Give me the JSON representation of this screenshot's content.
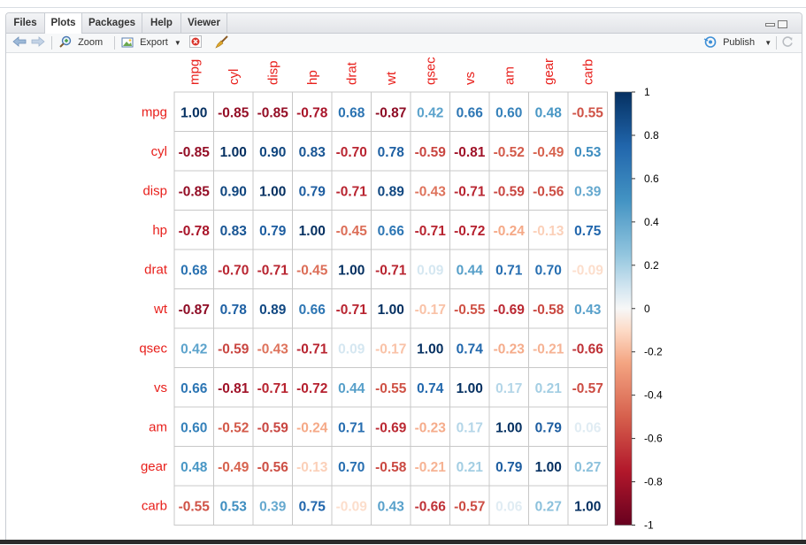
{
  "tabs": [
    {
      "label": "Files",
      "active": false
    },
    {
      "label": "Plots",
      "active": true
    },
    {
      "label": "Packages",
      "active": false
    },
    {
      "label": "Help",
      "active": false
    },
    {
      "label": "Viewer",
      "active": false
    }
  ],
  "toolbar": {
    "zoom_label": "Zoom",
    "export_label": "Export",
    "publish_label": "Publish"
  },
  "colors": {
    "label_red": "#e8201c",
    "strong_neg": "#67001f",
    "neg": "#b2182b",
    "mild_neg": "#d6604d",
    "pos": "#2166ac",
    "strong_pos": "#053061",
    "light_pos": "#92c5de"
  },
  "chart_data": {
    "type": "heatmap",
    "title": "",
    "variables": [
      "mpg",
      "cyl",
      "disp",
      "hp",
      "drat",
      "wt",
      "qsec",
      "vs",
      "am",
      "gear",
      "carb"
    ],
    "matrix": [
      [
        1.0,
        -0.85,
        -0.85,
        -0.78,
        0.68,
        -0.87,
        0.42,
        0.66,
        0.6,
        0.48,
        -0.55
      ],
      [
        -0.85,
        1.0,
        0.9,
        0.83,
        -0.7,
        0.78,
        -0.59,
        -0.81,
        -0.52,
        -0.49,
        0.53
      ],
      [
        -0.85,
        0.9,
        1.0,
        0.79,
        -0.71,
        0.89,
        -0.43,
        -0.71,
        -0.59,
        -0.56,
        0.39
      ],
      [
        -0.78,
        0.83,
        0.79,
        1.0,
        -0.45,
        0.66,
        -0.71,
        -0.72,
        -0.24,
        -0.13,
        0.75
      ],
      [
        0.68,
        -0.7,
        -0.71,
        -0.45,
        1.0,
        -0.71,
        0.09,
        0.44,
        0.71,
        0.7,
        -0.09
      ],
      [
        -0.87,
        0.78,
        0.89,
        0.66,
        -0.71,
        1.0,
        -0.17,
        -0.55,
        -0.69,
        -0.58,
        0.43
      ],
      [
        0.42,
        -0.59,
        -0.43,
        -0.71,
        0.09,
        -0.17,
        1.0,
        0.74,
        -0.23,
        -0.21,
        -0.66
      ],
      [
        0.66,
        -0.81,
        -0.71,
        -0.72,
        0.44,
        -0.55,
        0.74,
        1.0,
        0.17,
        0.21,
        -0.57
      ],
      [
        0.6,
        -0.52,
        -0.59,
        -0.24,
        0.71,
        -0.69,
        -0.23,
        0.17,
        1.0,
        0.79,
        0.06
      ],
      [
        0.48,
        -0.49,
        -0.56,
        -0.13,
        0.7,
        -0.58,
        -0.21,
        0.21,
        0.79,
        1.0,
        0.27
      ],
      [
        -0.55,
        0.53,
        0.39,
        0.75,
        -0.09,
        0.43,
        -0.66,
        -0.57,
        0.06,
        0.27,
        1.0
      ]
    ],
    "legend": {
      "range": [
        -1,
        1
      ],
      "ticks": [
        "1",
        "0.8",
        "0.6",
        "0.4",
        "0.2",
        "0",
        "-0.2",
        "-0.4",
        "-0.6",
        "-0.8",
        "-1"
      ],
      "placement": "right"
    }
  }
}
